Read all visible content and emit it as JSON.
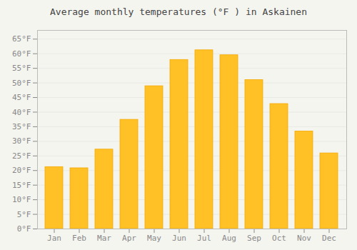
{
  "chart_data": {
    "type": "bar",
    "title": "Average monthly temperatures (°F ) in Askainen",
    "categories": [
      "Jan",
      "Feb",
      "Mar",
      "Apr",
      "May",
      "Jun",
      "Jul",
      "Aug",
      "Sep",
      "Oct",
      "Nov",
      "Dec"
    ],
    "values": [
      21.2,
      20.8,
      27.2,
      37.4,
      48.9,
      57.9,
      61.2,
      59.5,
      51.0,
      42.8,
      33.4,
      25.9
    ],
    "color": "#FFC125",
    "ylim": [
      0,
      68
    ],
    "yticks": [
      {
        "value": 0,
        "label": "0°F"
      },
      {
        "value": 5,
        "label": "5°F"
      },
      {
        "value": 10,
        "label": "10°F"
      },
      {
        "value": 15,
        "label": "15°F"
      },
      {
        "value": 20,
        "label": "20°F"
      },
      {
        "value": 25,
        "label": "25°F"
      },
      {
        "value": 30,
        "label": "30°F"
      },
      {
        "value": 35,
        "label": "35°F"
      },
      {
        "value": 40,
        "label": "40°F"
      },
      {
        "value": 45,
        "label": "45°F"
      },
      {
        "value": 50,
        "label": "50°F"
      },
      {
        "value": 55,
        "label": "55°F"
      },
      {
        "value": 60,
        "label": "60°F"
      },
      {
        "value": 65,
        "label": "65°F"
      }
    ],
    "grid": true
  }
}
